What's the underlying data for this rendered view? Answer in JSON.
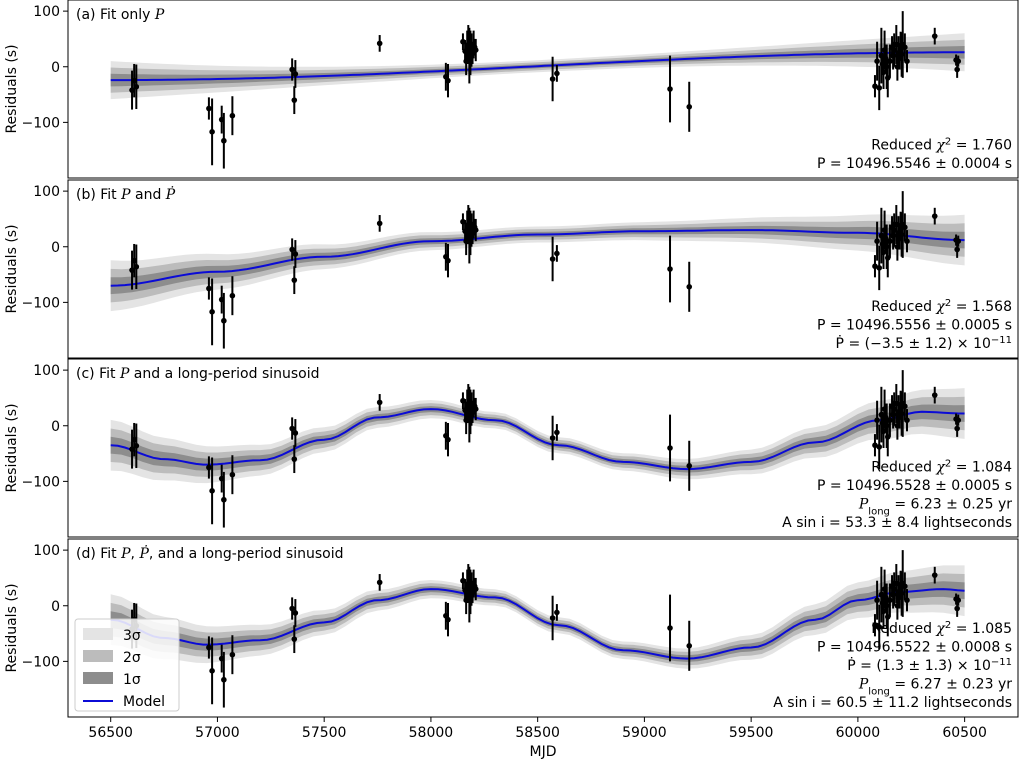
{
  "chart_data": [
    {
      "type": "scatter",
      "panel_label": "(a) Fit only P",
      "ylabel": "Residuals (s)",
      "xlim": [
        56300,
        60750
      ],
      "ylim": [
        -200,
        120
      ],
      "yticks": [
        -100,
        0,
        100
      ],
      "series": [
        {
          "name": "Model",
          "x": [
            56500,
            60500
          ],
          "y": [
            -24,
            26
          ]
        }
      ],
      "stats": [
        "Reduced χ² = 1.760",
        "P = 10496.5546 ± 0.0004 s"
      ]
    },
    {
      "type": "scatter",
      "panel_label": "(b) Fit P and Ṗ",
      "ylabel": "Residuals (s)",
      "xlim": [
        56300,
        60750
      ],
      "ylim": [
        -200,
        120
      ],
      "yticks": [
        -100,
        0,
        100
      ],
      "series": [
        {
          "name": "Model",
          "x": [
            56500,
            57000,
            57500,
            58000,
            58500,
            59000,
            59500,
            60000,
            60500
          ],
          "y": [
            -70,
            -45,
            -18,
            10,
            22,
            28,
            30,
            25,
            12
          ]
        }
      ],
      "stats": [
        "Reduced χ² = 1.568",
        "P = 10496.5556 ± 0.0005 s",
        "Ṗ = (−3.5 ± 1.2) × 10⁻¹¹"
      ]
    },
    {
      "type": "scatter",
      "panel_label": "(c) Fit P and a long-period sinusoid",
      "ylabel": "Residuals (s)",
      "xlim": [
        56300,
        60750
      ],
      "ylim": [
        -200,
        120
      ],
      "yticks": [
        -100,
        0,
        100
      ],
      "series": [
        {
          "name": "Model",
          "x": [
            56500,
            56750,
            56950,
            57200,
            57500,
            57750,
            58000,
            58300,
            58600,
            58900,
            59200,
            59500,
            59800,
            60100,
            60300,
            60500
          ],
          "y": [
            -35,
            -60,
            -70,
            -62,
            -25,
            15,
            30,
            10,
            -35,
            -65,
            -78,
            -65,
            -30,
            10,
            25,
            22
          ]
        }
      ],
      "stats": [
        "Reduced χ² = 1.084",
        "P = 10496.5528 ± 0.0005 s",
        "P_long = 6.23 ± 0.25 yr",
        "A sin i = 53.3 ± 8.4 lightseconds"
      ]
    },
    {
      "type": "scatter",
      "panel_label": "(d) Fit P, Ṗ, and a long-period sinusoid",
      "ylabel": "Residuals (s)",
      "xlabel": "MJD",
      "xlim": [
        56300,
        60750
      ],
      "ylim": [
        -200,
        120
      ],
      "yticks": [
        -100,
        0,
        100
      ],
      "xticks": [
        56500,
        57000,
        57500,
        58000,
        58500,
        59000,
        59500,
        60000,
        60500
      ],
      "series": [
        {
          "name": "Model",
          "x": [
            56500,
            56750,
            56950,
            57200,
            57500,
            57750,
            58000,
            58300,
            58600,
            58900,
            59200,
            59500,
            59800,
            60000,
            60200,
            60400,
            60500
          ],
          "y": [
            -25,
            -58,
            -70,
            -62,
            -30,
            10,
            30,
            15,
            -35,
            -80,
            -95,
            -75,
            -25,
            10,
            25,
            30,
            27
          ]
        }
      ],
      "stats": [
        "Reduced χ² = 1.085",
        "P = 10496.5522 ± 0.0008 s",
        "Ṗ = (1.3 ± 1.3) × 10⁻¹¹",
        "P_long = 6.27 ± 0.23 yr",
        "A sin i = 60.5 ± 11.2 lightseconds"
      ],
      "legend": {
        "position": "lower-left",
        "entries": [
          "3σ",
          "2σ",
          "1σ",
          "Model"
        ]
      }
    }
  ],
  "observations": {
    "x": [
      56600,
      56610,
      56620,
      56960,
      56975,
      57020,
      57030,
      57070,
      57350,
      57360,
      57365,
      57760,
      58070,
      58080,
      58150,
      58160,
      58165,
      58170,
      58175,
      58180,
      58185,
      58190,
      58195,
      58200,
      58205,
      58210,
      58570,
      58590,
      59120,
      59210,
      60080,
      60090,
      60100,
      60110,
      60115,
      60120,
      60125,
      60130,
      60135,
      60140,
      60150,
      60160,
      60165,
      60170,
      60180,
      60185,
      60190,
      60195,
      60200,
      60205,
      60210,
      60220,
      60230,
      60360,
      60460,
      60465,
      60470
    ],
    "y": [
      [
        -42,
        -25,
        -36,
        -75,
        -117,
        -95,
        -133,
        -88,
        -5,
        -60,
        -13,
        42,
        -18,
        -25,
        45,
        28,
        10,
        35,
        40,
        20,
        25,
        30,
        25,
        40,
        35,
        30,
        -22,
        -12,
        -40,
        -72,
        -35,
        10,
        -38,
        20,
        5,
        -10,
        30,
        15,
        0,
        -20,
        10,
        35,
        20,
        30,
        40,
        0,
        25,
        15,
        38,
        22,
        40,
        35,
        10,
        55,
        12,
        -5,
        10
      ]
    ],
    "yerr": [
      35,
      30,
      40,
      20,
      60,
      25,
      50,
      35,
      20,
      25,
      25,
      15,
      25,
      30,
      15,
      20,
      25,
      30,
      35,
      50,
      40,
      30,
      20,
      25,
      15,
      20,
      40,
      15,
      60,
      45,
      20,
      35,
      40,
      50,
      20,
      30,
      35,
      25,
      40,
      35,
      30,
      20,
      25,
      30,
      35,
      25,
      30,
      20,
      25,
      40,
      60,
      25,
      20,
      15,
      10,
      15,
      10
    ]
  },
  "colors": {
    "model": "#0b0bd6",
    "band_3sigma": "#e4e4e4",
    "band_2sigma": "#bcbcbc",
    "band_1sigma": "#8d8d8d",
    "points": "#000000"
  }
}
